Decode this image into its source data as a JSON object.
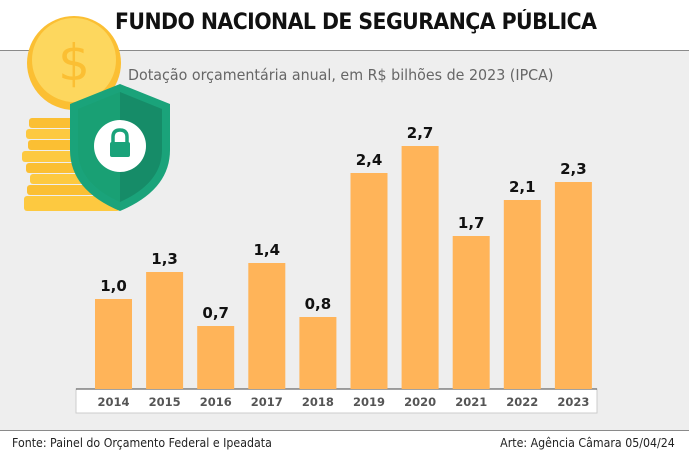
{
  "header": {
    "title": "FUNDO NACIONAL DE SEGURANÇA PÚBLICA",
    "subtitle": "Dotação orçamentária anual, em R$ bilhões de 2023 (IPCA)"
  },
  "footer": {
    "source": "Fonte: Painel do Orçamento Federal e Ipeadata",
    "credit": "Arte: Agência Câmara 05/04/24"
  },
  "illustration": {
    "icons": [
      "coin-dollar-icon",
      "coin-stack-icon",
      "security-shield-lock-icon"
    ],
    "colors": {
      "coin": "#fdd75e",
      "coin_edge": "#fbbf33",
      "shield_outer": "#1aa37a",
      "shield_inner": "#178f69",
      "lock": "#1aa37a"
    }
  },
  "colors": {
    "bar": "#ffb459",
    "panel": "#eeeeee",
    "axis_box": "#ffffff"
  },
  "chart_data": {
    "type": "bar",
    "title": "FUNDO NACIONAL DE SEGURANÇA PÚBLICA",
    "subtitle": "Dotação orçamentária anual, em R$ bilhões de 2023 (IPCA)",
    "xlabel": "",
    "ylabel": "",
    "categories": [
      "2014",
      "2015",
      "2016",
      "2017",
      "2018",
      "2019",
      "2020",
      "2021",
      "2022",
      "2023"
    ],
    "values": [
      1.0,
      1.3,
      0.7,
      1.4,
      0.8,
      2.4,
      2.7,
      1.7,
      2.1,
      2.3
    ],
    "value_labels": [
      "1,0",
      "1,3",
      "0,7",
      "1,4",
      "0,8",
      "2,4",
      "2,7",
      "1,7",
      "2,1",
      "2,3"
    ],
    "ylim": [
      0,
      2.7
    ],
    "grid": false,
    "legend": "none",
    "units": "R$ bilhões de 2023 (IPCA)"
  }
}
